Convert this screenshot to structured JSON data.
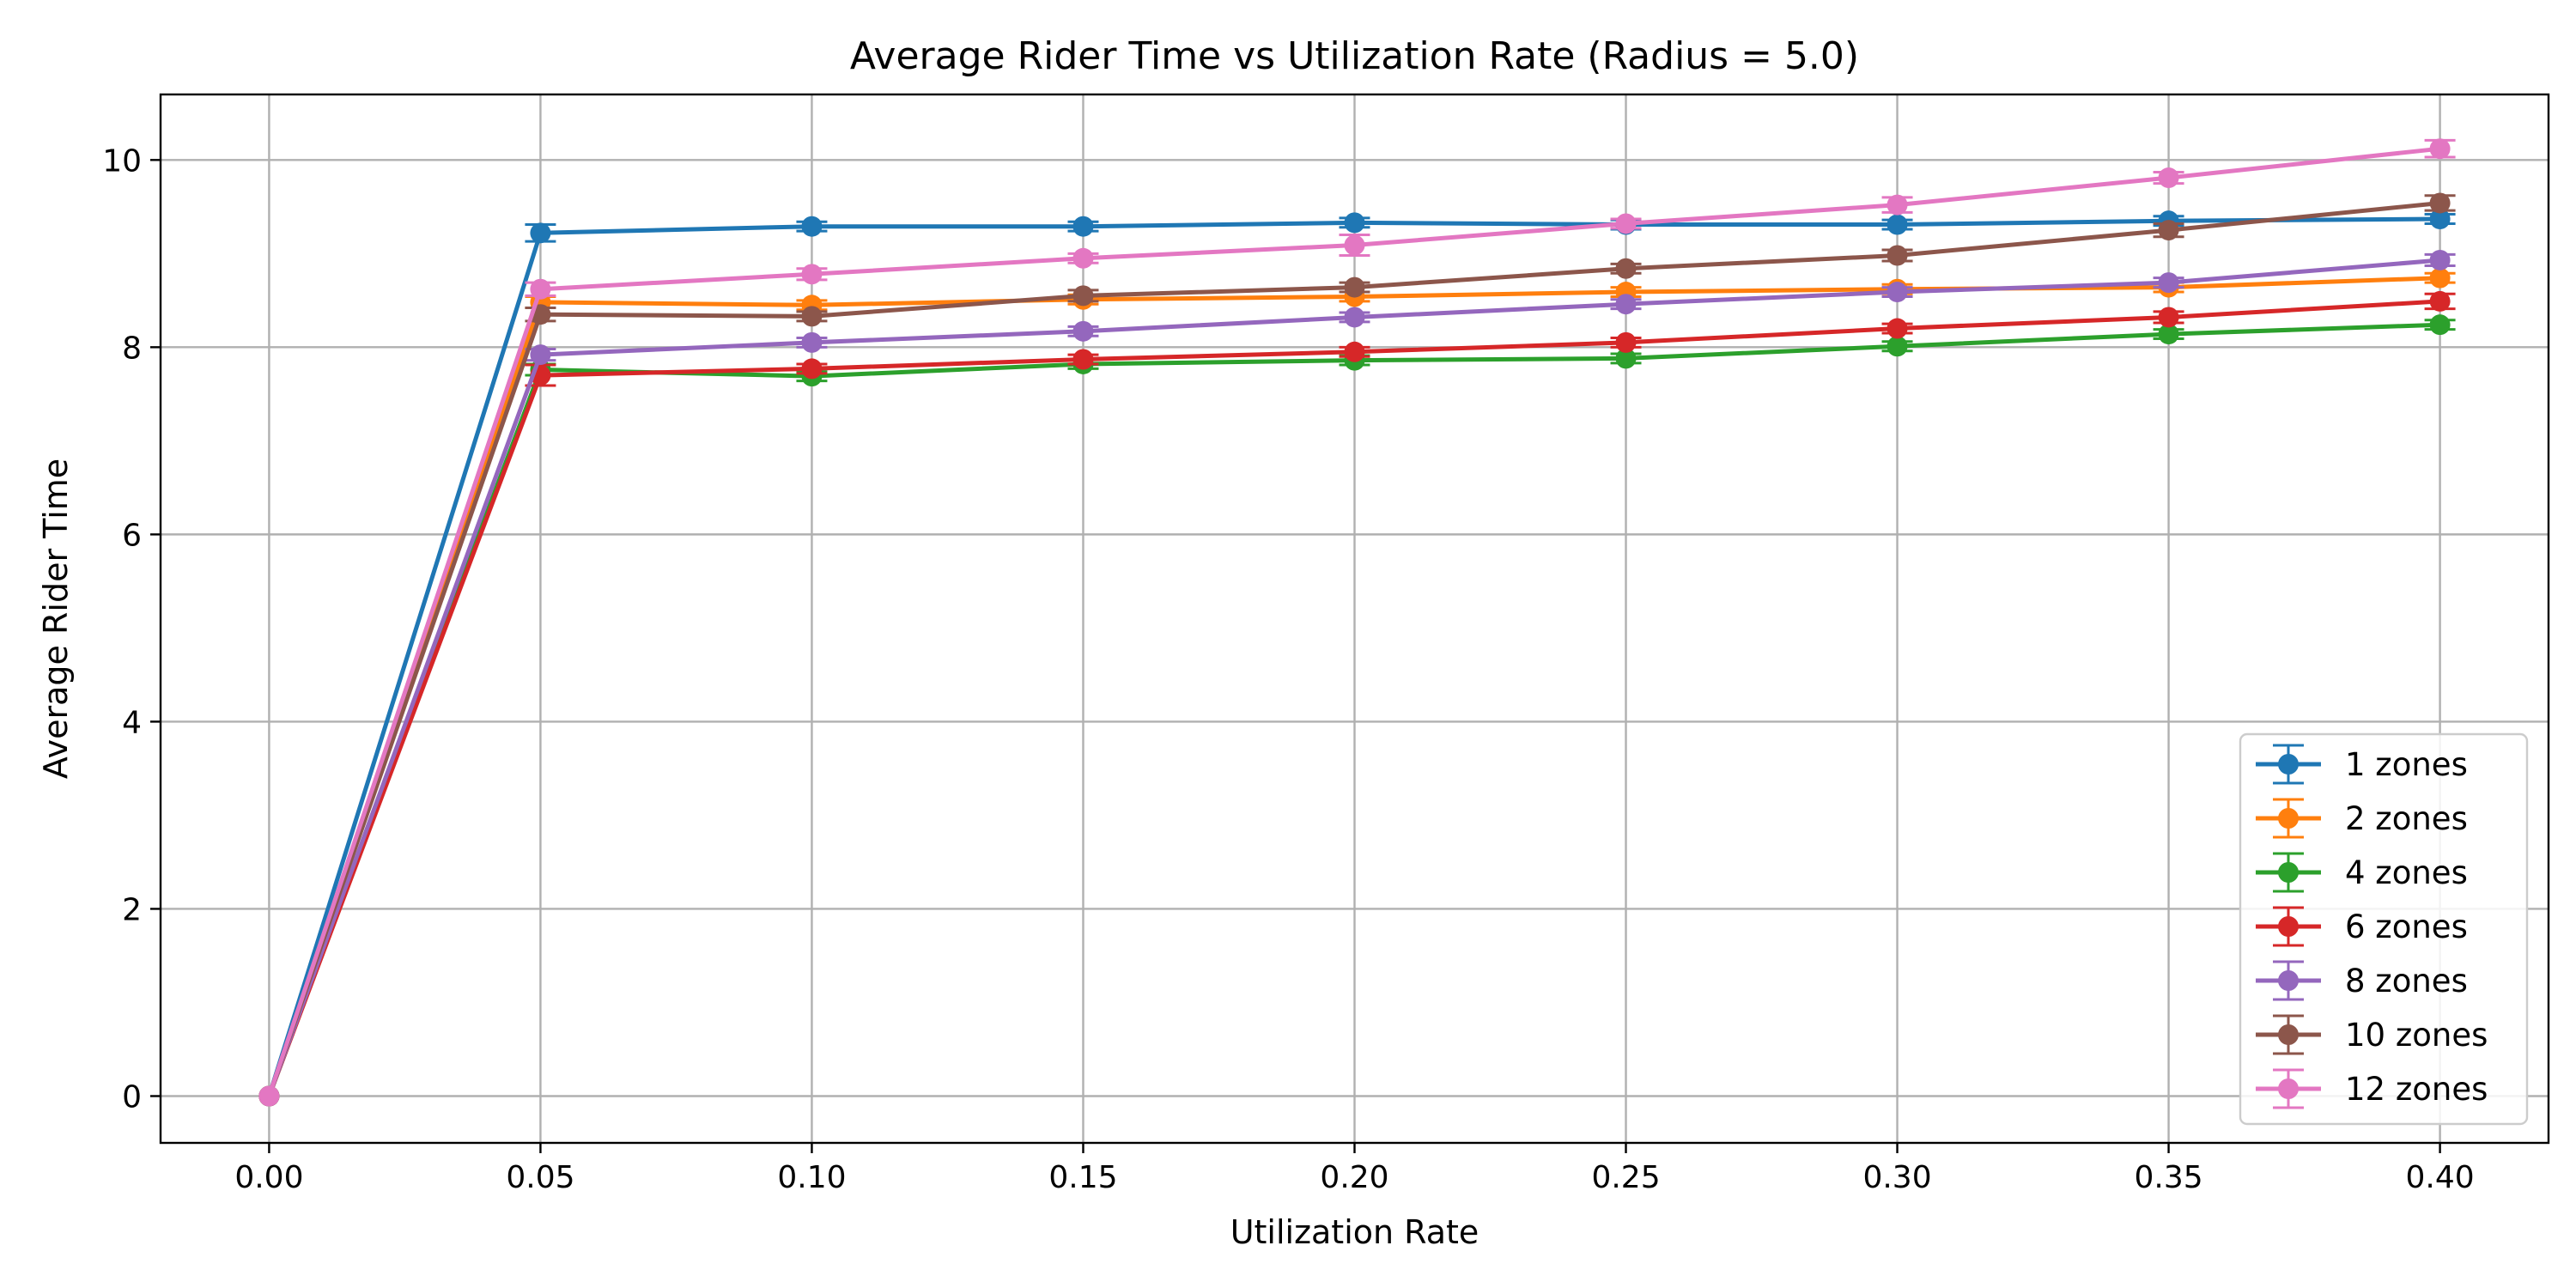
{
  "chart_data": {
    "type": "line",
    "title": "Average Rider Time vs Utilization Rate (Radius = 5.0)",
    "xlabel": "Utilization Rate",
    "ylabel": "Average Rider Time",
    "x": [
      0.0,
      0.05,
      0.1,
      0.15,
      0.2,
      0.25,
      0.3,
      0.35,
      0.4
    ],
    "x_tick_labels": [
      "0.00",
      "0.05",
      "0.10",
      "0.15",
      "0.20",
      "0.25",
      "0.30",
      "0.35",
      "0.40"
    ],
    "y_ticks": [
      0,
      2,
      4,
      6,
      8,
      10
    ],
    "y_tick_labels": [
      "0",
      "2",
      "4",
      "6",
      "8",
      "10"
    ],
    "xlim": [
      -0.02,
      0.42
    ],
    "ylim": [
      -0.5,
      10.7
    ],
    "grid": true,
    "legend_position": "lower-right",
    "error_bars": true,
    "series": [
      {
        "name": "1 zones",
        "color": "#1f77b4",
        "values": [
          0,
          9.22,
          9.29,
          9.29,
          9.33,
          9.31,
          9.31,
          9.35,
          9.37
        ],
        "errors": [
          0,
          0.09,
          0.05,
          0.05,
          0.05,
          0.05,
          0.05,
          0.05,
          0.05
        ]
      },
      {
        "name": "2 zones",
        "color": "#ff7f0e",
        "values": [
          0,
          8.48,
          8.45,
          8.51,
          8.54,
          8.59,
          8.62,
          8.64,
          8.74
        ],
        "errors": [
          0,
          0.06,
          0.05,
          0.05,
          0.05,
          0.05,
          0.05,
          0.05,
          0.05
        ]
      },
      {
        "name": "4 zones",
        "color": "#2ca02c",
        "values": [
          0,
          7.76,
          7.69,
          7.82,
          7.86,
          7.88,
          8.01,
          8.14,
          8.24
        ],
        "errors": [
          0,
          0.06,
          0.05,
          0.05,
          0.05,
          0.05,
          0.05,
          0.05,
          0.05
        ]
      },
      {
        "name": "6 zones",
        "color": "#d62728",
        "values": [
          0,
          7.7,
          7.77,
          7.87,
          7.95,
          8.05,
          8.2,
          8.32,
          8.49
        ],
        "errors": [
          0,
          0.11,
          0.05,
          0.05,
          0.05,
          0.05,
          0.05,
          0.06,
          0.08
        ]
      },
      {
        "name": "8 zones",
        "color": "#9467bd",
        "values": [
          0,
          7.92,
          8.05,
          8.17,
          8.32,
          8.46,
          8.59,
          8.69,
          8.93
        ],
        "errors": [
          0,
          0.06,
          0.05,
          0.05,
          0.05,
          0.05,
          0.05,
          0.05,
          0.06
        ]
      },
      {
        "name": "10 zones",
        "color": "#8c564b",
        "values": [
          0,
          8.35,
          8.33,
          8.55,
          8.64,
          8.84,
          8.98,
          9.25,
          9.54
        ],
        "errors": [
          0,
          0.07,
          0.05,
          0.06,
          0.05,
          0.05,
          0.06,
          0.07,
          0.08
        ]
      },
      {
        "name": "12 zones",
        "color": "#e377c2",
        "values": [
          0,
          8.62,
          8.78,
          8.95,
          9.09,
          9.32,
          9.52,
          9.81,
          10.12
        ],
        "errors": [
          0,
          0.07,
          0.06,
          0.05,
          0.11,
          0.05,
          0.08,
          0.06,
          0.09
        ]
      }
    ]
  }
}
